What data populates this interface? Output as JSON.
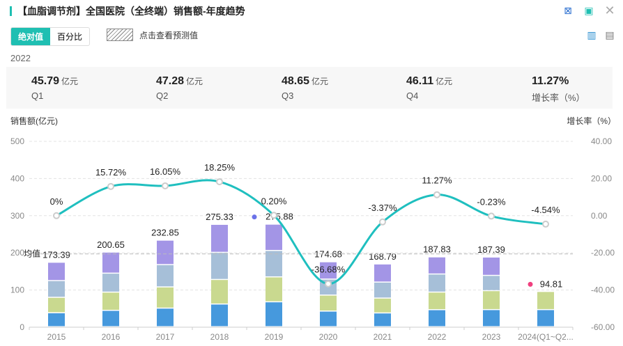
{
  "header": {
    "title": "【血脂调节剂】全国医院（全终端）销售额-年度趋势"
  },
  "toolbar": {
    "tab_absolute": "绝对值",
    "tab_percent": "百分比",
    "forecast_label": "点击查看预测值"
  },
  "icons": [
    "excel-export-icon",
    "image-export-icon",
    "close-icon",
    "bar-chart-icon",
    "document-icon"
  ],
  "summary": {
    "year": "2022",
    "items": [
      {
        "value": "45.79",
        "unit": "亿元",
        "label": "Q1"
      },
      {
        "value": "47.28",
        "unit": "亿元",
        "label": "Q2"
      },
      {
        "value": "48.65",
        "unit": "亿元",
        "label": "Q3"
      },
      {
        "value": "46.11",
        "unit": "亿元",
        "label": "Q4"
      },
      {
        "value": "11.27%",
        "unit": "",
        "label": "增长率（%）"
      }
    ]
  },
  "colors": {
    "q1": "#4699dd",
    "q2": "#c9d98f",
    "q3": "#a6bfd8",
    "q4": "#a395e6",
    "line": "#1fbfbf",
    "max": "#6b72e8",
    "min": "#f0407f"
  },
  "chart_data": {
    "type": "bar+line",
    "ylabel": "销售额(亿元)",
    "y2label": "增长率（%）",
    "ylim": [
      0,
      500
    ],
    "yticks": [
      "0",
      "100",
      "200",
      "300",
      "400",
      "500"
    ],
    "y2lim": [
      -60,
      40
    ],
    "y2ticks": [
      "-60.00",
      "-40.00",
      "-20.00",
      "0.00",
      "20.00",
      "40.00"
    ],
    "categories": [
      "2015",
      "2016",
      "2017",
      "2018",
      "2019",
      "2020",
      "2021",
      "2022",
      "2023",
      "2024(Q1~Q2..."
    ],
    "series": [
      {
        "name": "Q1",
        "values": [
          37.5,
          44,
          50,
          61,
          67,
          42,
          37,
          45.79,
          46,
          46
        ]
      },
      {
        "name": "Q2",
        "values": [
          41.5,
          49,
          57,
          66,
          67,
          43,
          40,
          47.28,
          51,
          48.81
        ]
      },
      {
        "name": "Q3",
        "values": [
          45,
          51,
          60,
          73,
          71,
          43,
          43,
          48.65,
          41,
          0
        ]
      },
      {
        "name": "Q4",
        "values": [
          49.39,
          56.65,
          65.85,
          75.33,
          70.88,
          46.68,
          48.79,
          46.11,
          49.39,
          0
        ]
      }
    ],
    "totals": [
      "173.39",
      "200.65",
      "232.85",
      "275.33",
      "275.88",
      "174.68",
      "168.79",
      "187.83",
      "187.39",
      "94.81"
    ],
    "growth": [
      0,
      15.72,
      16.05,
      18.25,
      0.2,
      -36.68,
      -3.37,
      11.27,
      -0.23,
      -4.54
    ],
    "growth_labels": [
      "0%",
      "15.72%",
      "16.05%",
      "18.25%",
      "0.20%",
      "-36.68%",
      "-3.37%",
      "11.27%",
      "-0.23%",
      "-4.54%"
    ],
    "average": {
      "label": "均值",
      "value": 197.16
    },
    "max_index": 4,
    "min_index": 9
  }
}
